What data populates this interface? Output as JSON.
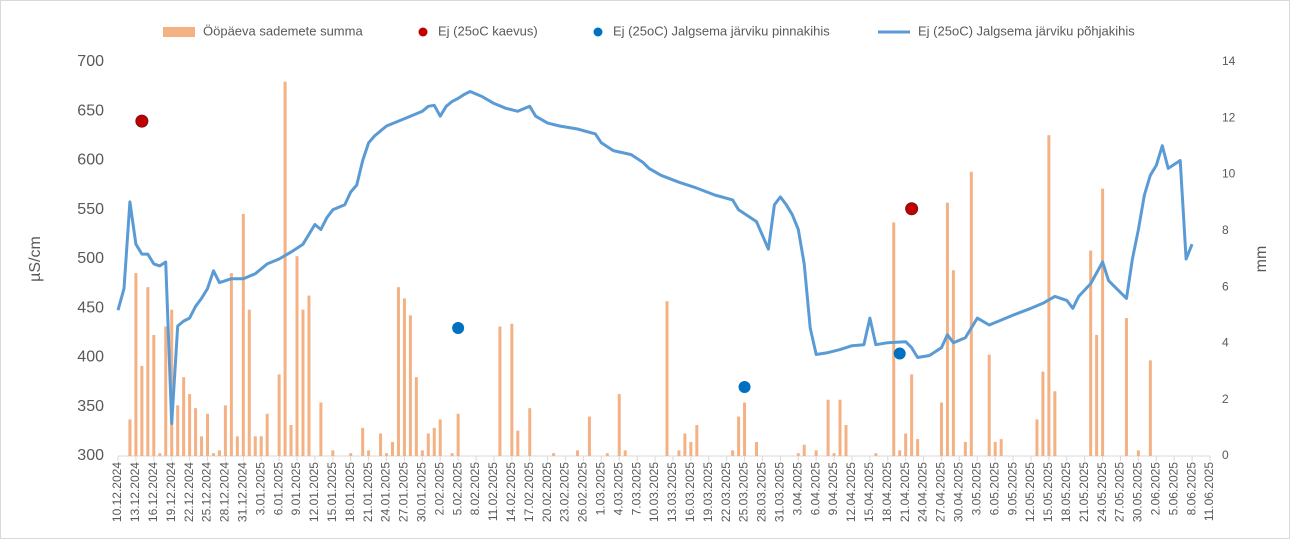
{
  "chart_data": {
    "type": "combo",
    "ylabel": "µS/cm",
    "y2label": "mm",
    "ylim": [
      300,
      700
    ],
    "yticks": [
      300,
      350,
      400,
      450,
      500,
      550,
      600,
      650,
      700
    ],
    "y2lim": [
      0,
      14
    ],
    "y2ticks": [
      0,
      2,
      4,
      6,
      8,
      10,
      12,
      14
    ],
    "xlim": [
      "10.12.2024",
      "11.06.2025"
    ],
    "xticks": [
      "10.12.2024",
      "13.12.2024",
      "16.12.2024",
      "19.12.2024",
      "22.12.2024",
      "25.12.2024",
      "28.12.2024",
      "31.12.2024",
      "3.01.2025",
      "6.01.2025",
      "9.01.2025",
      "12.01.2025",
      "15.01.2025",
      "18.01.2025",
      "21.01.2025",
      "24.01.2025",
      "27.01.2025",
      "30.01.2025",
      "2.02.2025",
      "5.02.2025",
      "8.02.2025",
      "11.02.2025",
      "14.02.2025",
      "17.02.2025",
      "20.02.2025",
      "23.02.2025",
      "26.02.2025",
      "1.03.2025",
      "4.03.2025",
      "7.03.2025",
      "10.03.2025",
      "13.03.2025",
      "16.03.2025",
      "19.03.2025",
      "22.03.2025",
      "25.03.2025",
      "28.03.2025",
      "31.03.2025",
      "3.04.2025",
      "6.04.2025",
      "9.04.2025",
      "12.04.2025",
      "15.04.2025",
      "18.04.2025",
      "21.04.2025",
      "24.04.2025",
      "27.04.2025",
      "30.04.2025",
      "3.05.2025",
      "6.05.2025",
      "9.05.2025",
      "12.05.2025",
      "15.05.2025",
      "18.05.2025",
      "21.05.2025",
      "24.05.2025",
      "27.05.2025",
      "30.05.2025",
      "2.06.2025",
      "5.06.2025",
      "8.06.2025",
      "11.06.2025"
    ],
    "grid": false,
    "legend": "top",
    "series": [
      {
        "name": "Ööpäeva sademete summa",
        "type": "bar",
        "axis": "y2",
        "color": "#f4b183",
        "x": [
          "12.12.2024",
          "13.12.2024",
          "14.12.2024",
          "15.12.2024",
          "16.12.2024",
          "17.12.2024",
          "18.12.2024",
          "19.12.2024",
          "20.12.2024",
          "21.12.2024",
          "22.12.2024",
          "23.12.2024",
          "24.12.2024",
          "25.12.2024",
          "26.12.2024",
          "27.12.2024",
          "28.12.2024",
          "29.12.2024",
          "30.12.2024",
          "31.12.2024",
          "1.01.2025",
          "2.01.2025",
          "3.01.2025",
          "4.01.2025",
          "6.01.2025",
          "7.01.2025",
          "8.01.2025",
          "9.01.2025",
          "10.01.2025",
          "11.01.2025",
          "13.01.2025",
          "15.01.2025",
          "18.01.2025",
          "20.01.2025",
          "21.01.2025",
          "23.01.2025",
          "24.01.2025",
          "25.01.2025",
          "26.01.2025",
          "27.01.2025",
          "28.01.2025",
          "29.01.2025",
          "30.01.2025",
          "31.01.2025",
          "1.02.2025",
          "2.02.2025",
          "4.02.2025",
          "5.02.2025",
          "12.02.2025",
          "14.02.2025",
          "15.02.2025",
          "17.02.2025",
          "21.02.2025",
          "25.02.2025",
          "27.02.2025",
          "2.03.2025",
          "4.03.2025",
          "5.03.2025",
          "12.03.2025",
          "14.03.2025",
          "15.03.2025",
          "16.03.2025",
          "17.03.2025",
          "23.03.2025",
          "24.03.2025",
          "25.03.2025",
          "27.03.2025",
          "3.04.2025",
          "4.04.2025",
          "6.04.2025",
          "8.04.2025",
          "9.04.2025",
          "10.04.2025",
          "11.04.2025",
          "16.04.2025",
          "19.04.2025",
          "20.04.2025",
          "21.04.2025",
          "22.04.2025",
          "23.04.2025",
          "27.04.2025",
          "28.04.2025",
          "29.04.2025",
          "1.05.2025",
          "2.05.2025",
          "5.05.2025",
          "6.05.2025",
          "7.05.2025",
          "13.05.2025",
          "14.05.2025",
          "15.05.2025",
          "16.05.2025",
          "22.05.2025",
          "23.05.2025",
          "24.05.2025",
          "28.05.2025",
          "30.05.2025",
          "1.06.2025"
        ],
        "values": [
          1.3,
          6.5,
          3.2,
          6.0,
          4.3,
          0.1,
          4.6,
          5.2,
          1.8,
          2.8,
          2.2,
          1.7,
          0.7,
          1.5,
          0.1,
          0.2,
          1.8,
          6.5,
          0.7,
          8.6,
          5.2,
          0.7,
          0.7,
          1.5,
          2.9,
          13.3,
          1.1,
          7.1,
          5.2,
          5.7,
          1.9,
          0.2,
          0.1,
          1.0,
          0.2,
          0.8,
          0.1,
          0.5,
          6.0,
          5.6,
          5.0,
          2.8,
          0.2,
          0.8,
          1.0,
          1.3,
          0.1,
          1.5,
          4.6,
          4.7,
          0.9,
          1.7,
          0.1,
          0.2,
          1.4,
          0.1,
          2.2,
          0.2,
          5.5,
          0.2,
          0.8,
          0.5,
          1.1,
          0.2,
          1.4,
          1.9,
          0.5,
          0.1,
          0.4,
          0.2,
          2.0,
          0.1,
          2.0,
          1.1,
          0.1,
          8.3,
          0.2,
          0.8,
          2.9,
          0.6,
          1.9,
          9.0,
          6.6,
          0.5,
          10.1,
          3.6,
          0.5,
          0.6,
          1.3,
          3.0,
          11.4,
          2.3,
          7.3,
          4.3,
          9.5,
          4.9,
          0.2,
          3.4
        ]
      },
      {
        "name": "Ej (25oC kaevus)",
        "type": "scatter",
        "color": "#c00000",
        "x": [
          "14.12.2024",
          "22.04.2025"
        ],
        "values": [
          640,
          551
        ]
      },
      {
        "name": "Ej (25oC) Jalgsema järviku pinnakihis",
        "type": "scatter",
        "color": "#0070c0",
        "x": [
          "5.02.2025",
          "25.03.2025",
          "20.04.2025"
        ],
        "values": [
          430,
          370,
          404
        ]
      },
      {
        "name": "Ej (25oC) Jalgsema järviku põhjakihis",
        "type": "line",
        "color": "#5b9bd5",
        "x": [
          "10.12.2024",
          "11.12.2024",
          "12.12.2024",
          "13.12.2024",
          "14.12.2024",
          "15.12.2024",
          "16.12.2024",
          "17.12.2024",
          "18.12.2024",
          "19.12.2024",
          "20.12.2024",
          "21.12.2024",
          "22.12.2024",
          "23.12.2024",
          "24.12.2024",
          "25.12.2024",
          "26.12.2024",
          "27.12.2024",
          "28.12.2024",
          "29.12.2024",
          "31.12.2024",
          "2.01.2025",
          "4.01.2025",
          "6.01.2025",
          "8.01.2025",
          "10.01.2025",
          "12.01.2025",
          "13.01.2025",
          "14.01.2025",
          "15.01.2025",
          "17.01.2025",
          "18.01.2025",
          "19.01.2025",
          "20.01.2025",
          "21.01.2025",
          "22.01.2025",
          "24.01.2025",
          "26.01.2025",
          "28.01.2025",
          "30.01.2025",
          "31.01.2025",
          "1.02.2025",
          "2.02.2025",
          "3.02.2025",
          "4.02.2025",
          "5.02.2025",
          "6.02.2025",
          "7.02.2025",
          "9.02.2025",
          "11.02.2025",
          "13.02.2025",
          "15.02.2025",
          "17.02.2025",
          "18.02.2025",
          "20.02.2025",
          "22.02.2025",
          "25.02.2025",
          "28.02.2025",
          "1.03.2025",
          "3.03.2025",
          "6.03.2025",
          "8.03.2025",
          "9.03.2025",
          "11.03.2025",
          "14.03.2025",
          "17.03.2025",
          "20.03.2025",
          "23.03.2025",
          "24.03.2025",
          "27.03.2025",
          "29.03.2025",
          "30.03.2025",
          "31.03.2025",
          "1.04.2025",
          "2.04.2025",
          "3.04.2025",
          "4.04.2025",
          "5.04.2025",
          "6.04.2025",
          "8.04.2025",
          "10.04.2025",
          "12.04.2025",
          "14.04.2025",
          "15.04.2025",
          "16.04.2025",
          "18.04.2025",
          "21.04.2025",
          "22.04.2025",
          "23.04.2025",
          "25.04.2025",
          "27.04.2025",
          "28.04.2025",
          "29.04.2025",
          "1.05.2025",
          "3.05.2025",
          "5.05.2025",
          "7.05.2025",
          "9.05.2025",
          "12.05.2025",
          "14.05.2025",
          "16.05.2025",
          "18.05.2025",
          "19.05.2025",
          "20.05.2025",
          "22.05.2025",
          "24.05.2025",
          "25.05.2025",
          "26.05.2025",
          "28.05.2025",
          "29.05.2025",
          "30.05.2025",
          "31.05.2025",
          "1.06.2025",
          "2.06.2025",
          "3.06.2025",
          "4.06.2025",
          "6.06.2025",
          "7.06.2025",
          "8.06.2025"
        ],
        "values": [
          448,
          470,
          558,
          515,
          505,
          505,
          495,
          493,
          497,
          333,
          432,
          437,
          440,
          452,
          460,
          470,
          488,
          476,
          478,
          480,
          480,
          485,
          495,
          500,
          507,
          515,
          535,
          530,
          542,
          550,
          555,
          568,
          575,
          600,
          618,
          625,
          635,
          640,
          645,
          650,
          655,
          656,
          645,
          655,
          660,
          663,
          667,
          670,
          665,
          658,
          653,
          650,
          655,
          645,
          638,
          635,
          632,
          627,
          618,
          610,
          606,
          598,
          592,
          585,
          578,
          572,
          565,
          560,
          550,
          538,
          510,
          555,
          563,
          555,
          545,
          530,
          495,
          430,
          403,
          405,
          408,
          412,
          413,
          440,
          413,
          415,
          416,
          410,
          400,
          402,
          410,
          423,
          415,
          420,
          440,
          433,
          438,
          443,
          450,
          455,
          462,
          458,
          450,
          462,
          475,
          497,
          478,
          472,
          460,
          500,
          530,
          565,
          585,
          595,
          615,
          592,
          600,
          500,
          515
        ]
      }
    ]
  }
}
